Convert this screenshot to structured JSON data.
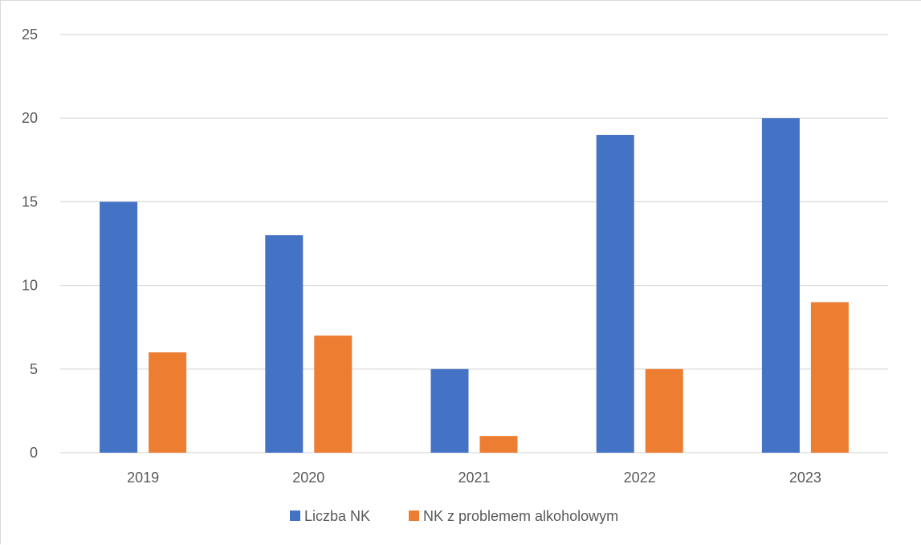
{
  "chart_data": {
    "type": "bar",
    "categories": [
      "2019",
      "2020",
      "2021",
      "2022",
      "2023"
    ],
    "series": [
      {
        "name": "Liczba NK",
        "values": [
          15,
          13,
          5,
          19,
          20
        ],
        "color": "#4472c4"
      },
      {
        "name": "NK z problemem alkoholowym",
        "values": [
          6,
          7,
          1,
          5,
          9
        ],
        "color": "#ed7d31"
      }
    ],
    "y_ticks": [
      "0",
      "5",
      "10",
      "15",
      "20",
      "25"
    ],
    "ylim": [
      0,
      25
    ],
    "grid": true,
    "gridline_color": "#d9d9d9",
    "legend_position": "bottom"
  }
}
